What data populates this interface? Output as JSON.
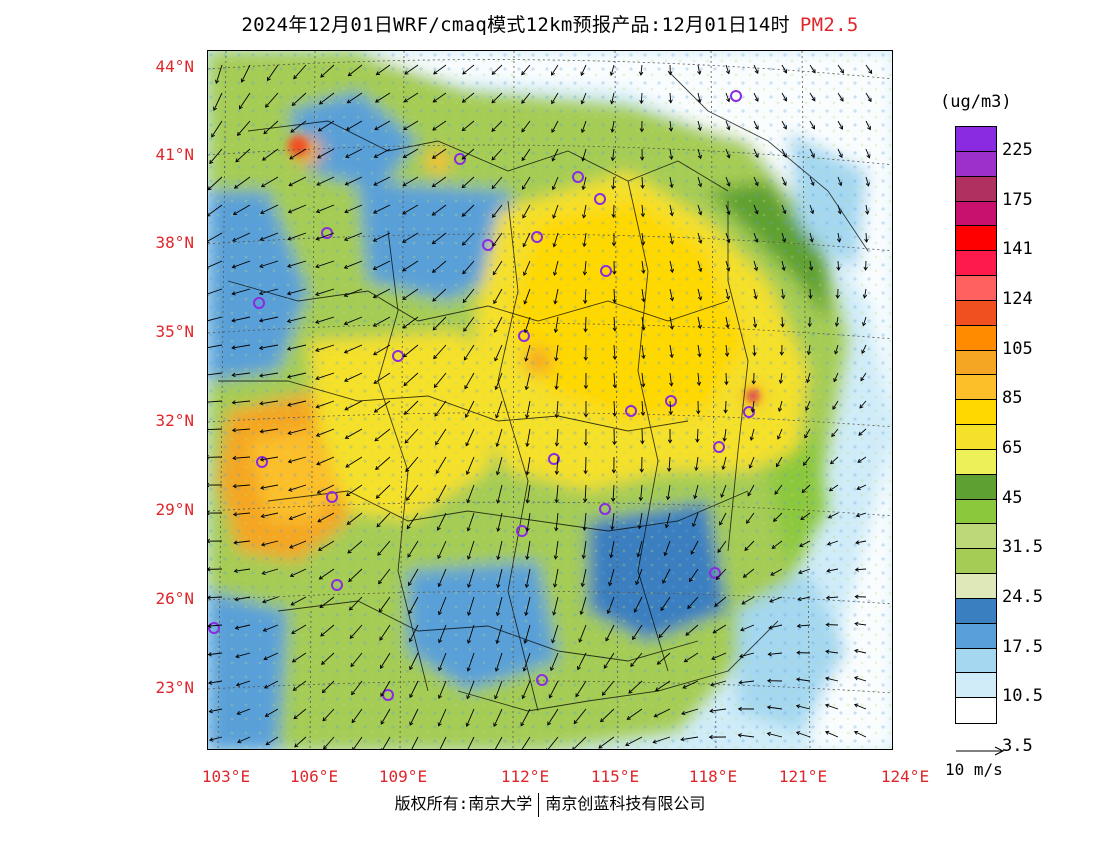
{
  "title": {
    "main": "2024年12月01日WRF/cmaq模式12km预报产品:12月01日14时",
    "product": "PM2.5"
  },
  "axes": {
    "lat_labels": [
      "44°N",
      "41°N",
      "38°N",
      "35°N",
      "32°N",
      "29°N",
      "26°N",
      "23°N"
    ],
    "lon_labels": [
      "103°E",
      "106°E",
      "109°E",
      "112°E",
      "115°E",
      "118°E",
      "121°E",
      "124°E"
    ]
  },
  "legend": {
    "unit": "(ug/m3)",
    "labels": [
      "225",
      "175",
      "141",
      "124",
      "105",
      "85",
      "65",
      "45",
      "31.5",
      "24.5",
      "17.5",
      "10.5",
      "3.5"
    ],
    "colors": [
      "#8a2be2",
      "#9c30c8",
      "#b03060",
      "#c8106e",
      "#ff0000",
      "#ff1a4c",
      "#ff6060",
      "#f05020",
      "#ff8c00",
      "#f5a623",
      "#fcbf2a",
      "#ffd800",
      "#f5e02a",
      "#eef05a",
      "#5fa032",
      "#8cc83c",
      "#bcd878",
      "#a5cc55",
      "#dfe8b8",
      "#3a7fc0",
      "#5aa0d8",
      "#a5d8f0",
      "#d0ecf8",
      "#ffffff"
    ],
    "wind_key": "10 m/s"
  },
  "footer": {
    "copyright": "版权所有:南京大学",
    "company": "南京创蓝科技有限公司"
  }
}
